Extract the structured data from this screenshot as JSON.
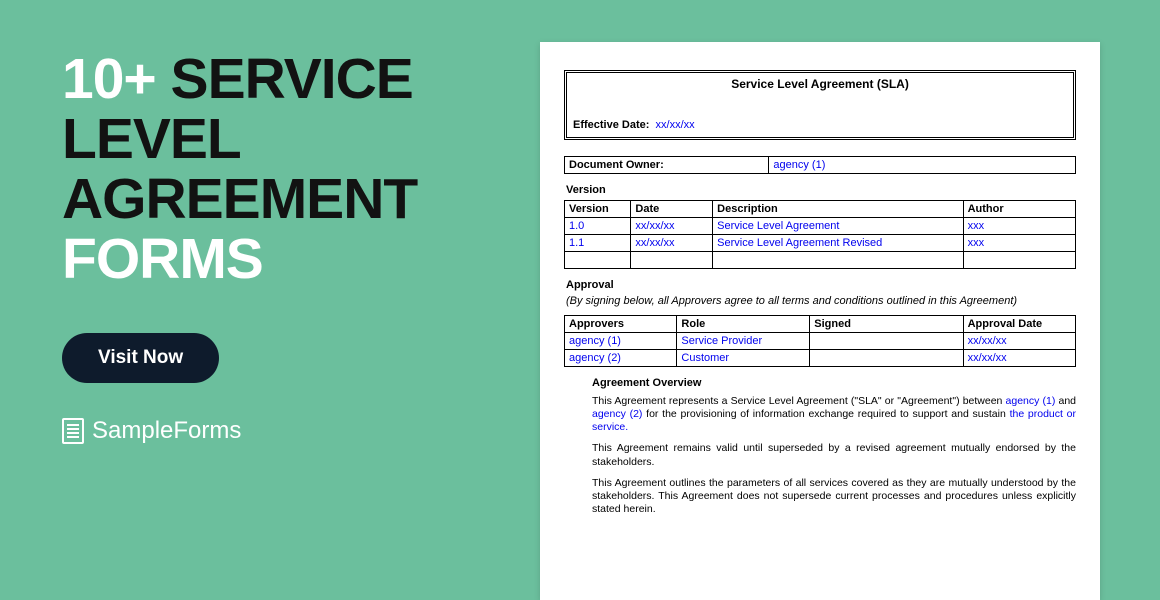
{
  "colors": {
    "page_bg": "#6bbf9d",
    "headline_white": "#ffffff",
    "headline_dark": "#121212",
    "cta_bg": "#0e1b2c",
    "cta_text": "#ffffff",
    "doc_bg": "#ffffff",
    "doc_text": "#000000",
    "link_blue": "#0000ee"
  },
  "headline": {
    "count": "10+",
    "line1a": "SERVICE",
    "line2": "LEVEL",
    "line3": "AGREEMENT",
    "line4": "FORMS"
  },
  "cta_label": "Visit Now",
  "brand": {
    "name": "SampleForms",
    "icon": "document-icon"
  },
  "doc": {
    "title": "Service Level Agreement (SLA)",
    "effective_label": "Effective Date:",
    "effective_value": "xx/xx/xx",
    "owner_label": "Document Owner:",
    "owner_value": "agency (1)",
    "version_label": "Version",
    "version_table": {
      "columns": [
        "Version",
        "Date",
        "Description",
        "Author"
      ],
      "rows": [
        [
          "1.0",
          "xx/xx/xx",
          "Service Level Agreement",
          "xxx"
        ],
        [
          "1.1",
          "xx/xx/xx",
          "Service Level Agreement Revised",
          "xxx"
        ]
      ],
      "col_widths": [
        "13%",
        "16%",
        "49%",
        "22%"
      ]
    },
    "approval_label": "Approval",
    "approval_note": "(By signing below, all Approvers agree to all terms and conditions outlined in this Agreement)",
    "approval_table": {
      "columns": [
        "Approvers",
        "Role",
        "Signed",
        "Approval Date"
      ],
      "rows": [
        [
          "agency (1)",
          "Service Provider",
          "",
          "xx/xx/xx"
        ],
        [
          "agency (2)",
          "Customer",
          "",
          "xx/xx/xx"
        ]
      ],
      "col_widths": [
        "22%",
        "26%",
        "30%",
        "22%"
      ]
    },
    "overview": {
      "heading": "Agreement Overview",
      "para1_pre": "This Agreement represents a Service Level Agreement (\"SLA\" or \"Agreement\") between ",
      "para1_a1": "agency (1)",
      "para1_mid": " and ",
      "para1_a2": "agency (2)",
      "para1_post": " for the provisioning of information exchange required to support and sustain ",
      "para1_prod": "the product or service.",
      "para2": "This Agreement remains valid until superseded by a revised agreement mutually endorsed by the stakeholders.",
      "para3": "This Agreement outlines the parameters of all services covered as they are mutually understood by the stakeholders. This Agreement does not supersede current processes and procedures unless explicitly stated herein."
    }
  }
}
